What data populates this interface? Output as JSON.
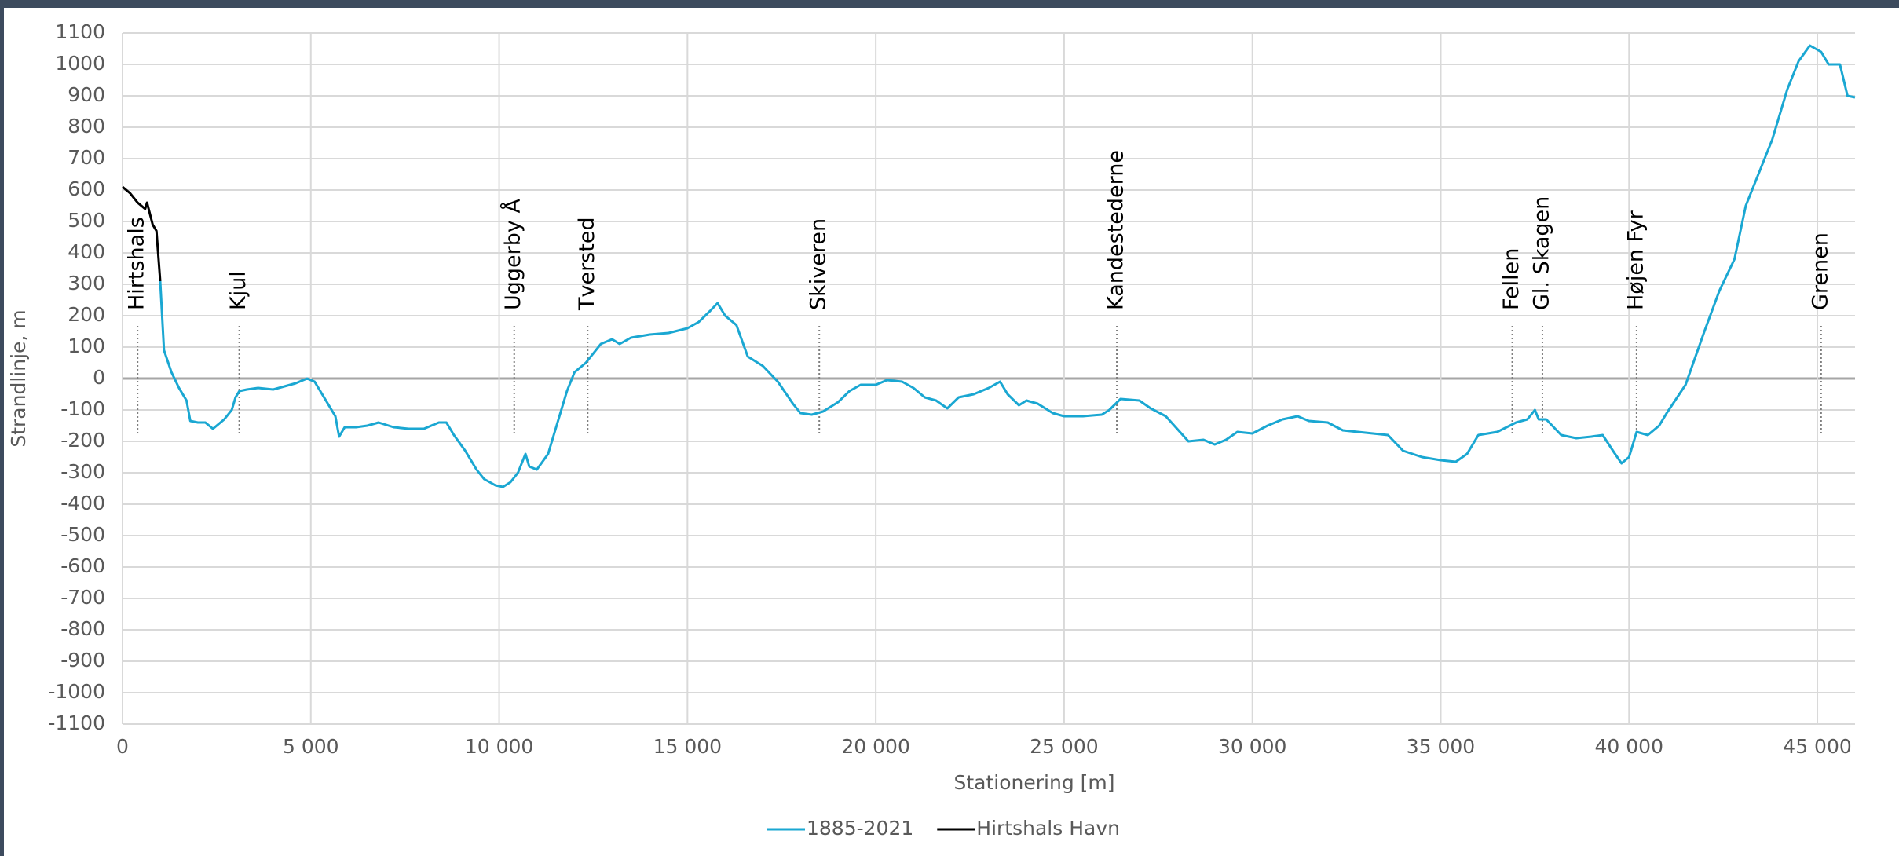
{
  "chart_data": {
    "type": "line",
    "x_label": "Stationering [m]",
    "y_label": "Strandlinje, m",
    "xlim": [
      0,
      46000
    ],
    "ylim": [
      -1100,
      1100
    ],
    "xticks": [
      0,
      {
        "value": 5000,
        "label": "5 000"
      },
      {
        "value": 10000,
        "label": "10 000"
      },
      {
        "value": 15000,
        "label": "15 000"
      },
      {
        "value": 20000,
        "label": "20 000"
      },
      {
        "value": 25000,
        "label": "25 000"
      },
      {
        "value": 30000,
        "label": "30 000"
      },
      {
        "value": 35000,
        "label": "35 000"
      },
      {
        "value": 40000,
        "label": "40 000"
      },
      {
        "value": 45000,
        "label": "45 000"
      }
    ],
    "yticks": [
      -1100,
      -1000,
      -900,
      -800,
      -700,
      -600,
      -500,
      -400,
      -300,
      -200,
      -100,
      0,
      100,
      200,
      300,
      400,
      500,
      600,
      700,
      800,
      900,
      1000,
      1100
    ],
    "grid": true,
    "legend": "bottom",
    "annotations": [
      {
        "label": "Hirtshals",
        "x": 400
      },
      {
        "label": "Kjul",
        "x": 3100
      },
      {
        "label": "Uggerby Å",
        "x": 10400
      },
      {
        "label": "Tversted",
        "x": 12350
      },
      {
        "label": "Skiveren",
        "x": 18500
      },
      {
        "label": "Kandestederne",
        "x": 26400
      },
      {
        "label": "Fellen",
        "x": 36900
      },
      {
        "label": "Gl. Skagen",
        "x": 37700
      },
      {
        "label": "Højen Fyr",
        "x": 40200
      },
      {
        "label": "Grenen",
        "x": 45100
      }
    ],
    "series": [
      {
        "name": "1885-2021",
        "color": "#1aa7d2",
        "x": [
          1000,
          1100,
          1300,
          1500,
          1700,
          1800,
          2000,
          2200,
          2400,
          2700,
          2900,
          3000,
          3100,
          3300,
          3600,
          4000,
          4300,
          4600,
          4900,
          5100,
          5300,
          5500,
          5650,
          5750,
          5900,
          6200,
          6500,
          6800,
          7200,
          7600,
          8000,
          8200,
          8400,
          8600,
          8800,
          9100,
          9400,
          9600,
          9900,
          10100,
          10300,
          10500,
          10700,
          10800,
          11000,
          11300,
          11600,
          11800,
          12000,
          12300,
          12500,
          12700,
          13000,
          13200,
          13500,
          14000,
          14500,
          15000,
          15300,
          15600,
          15800,
          16000,
          16300,
          16600,
          17000,
          17400,
          17800,
          18000,
          18300,
          18600,
          19000,
          19300,
          19600,
          20000,
          20300,
          20700,
          21000,
          21300,
          21600,
          21900,
          22200,
          22600,
          23000,
          23300,
          23500,
          23800,
          24000,
          24300,
          24700,
          25000,
          25500,
          26000,
          26200,
          26500,
          27000,
          27300,
          27700,
          28000,
          28300,
          28700,
          29000,
          29300,
          29600,
          30000,
          30400,
          30800,
          31200,
          31500,
          32000,
          32400,
          32800,
          33200,
          33600,
          34000,
          34500,
          35000,
          35400,
          35700,
          36000,
          36500,
          37000,
          37300,
          37500,
          37600,
          37800,
          38200,
          38600,
          39000,
          39300,
          39600,
          39800,
          40000,
          40200,
          40500,
          40800,
          41000,
          41500,
          42000,
          42400,
          42800,
          43100,
          43400,
          43800,
          44200,
          44500,
          44800,
          45100,
          45300,
          45600,
          45800,
          46000
        ],
        "values": [
          310,
          90,
          20,
          -30,
          -70,
          -135,
          -140,
          -140,
          -160,
          -130,
          -100,
          -60,
          -40,
          -35,
          -30,
          -35,
          -25,
          -15,
          0,
          -10,
          -50,
          -90,
          -120,
          -185,
          -155,
          -155,
          -150,
          -140,
          -155,
          -160,
          -160,
          -150,
          -140,
          -140,
          -180,
          -230,
          -290,
          -320,
          -340,
          -345,
          -330,
          -300,
          -240,
          -280,
          -290,
          -240,
          -120,
          -40,
          20,
          50,
          80,
          110,
          125,
          110,
          130,
          140,
          145,
          160,
          180,
          215,
          240,
          200,
          170,
          70,
          40,
          -10,
          -80,
          -110,
          -115,
          -105,
          -75,
          -40,
          -20,
          -20,
          -5,
          -10,
          -30,
          -60,
          -70,
          -95,
          -60,
          -50,
          -30,
          -10,
          -50,
          -85,
          -70,
          -80,
          -110,
          -120,
          -120,
          -115,
          -100,
          -65,
          -70,
          -95,
          -120,
          -160,
          -200,
          -195,
          -210,
          -195,
          -170,
          -175,
          -150,
          -130,
          -120,
          -135,
          -140,
          -165,
          -170,
          -175,
          -180,
          -230,
          -250,
          -260,
          -265,
          -240,
          -180,
          -170,
          -140,
          -130,
          -100,
          -130,
          -130,
          -180,
          -190,
          -185,
          -180,
          -235,
          -270,
          -250,
          -170,
          -180,
          -150,
          -110,
          -20,
          150,
          280,
          380,
          550,
          640,
          760,
          920,
          1010,
          1060,
          1040,
          1000,
          1000,
          900,
          895
        ]
      },
      {
        "name": "Hirtshals Havn",
        "color": "#000000",
        "x": [
          0,
          200,
          400,
          600,
          650,
          800,
          900,
          1000
        ],
        "values": [
          610,
          590,
          560,
          540,
          560,
          490,
          470,
          310
        ]
      }
    ]
  }
}
